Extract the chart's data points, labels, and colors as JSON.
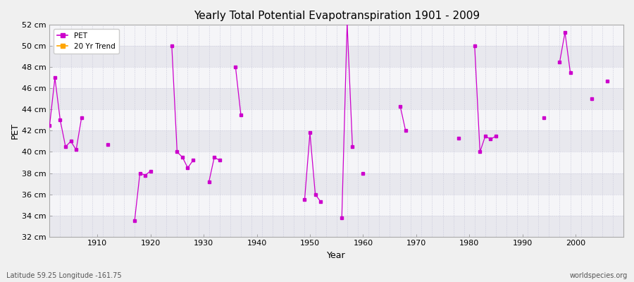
{
  "title": "Yearly Total Potential Evapotranspiration 1901 - 2009",
  "xlabel": "Year",
  "ylabel": "PET",
  "bottom_left_label": "Latitude 59.25 Longitude -161.75",
  "bottom_right_label": "worldspecies.org",
  "xlim": [
    1901,
    2009
  ],
  "ylim": [
    32,
    52
  ],
  "ytick_labels": [
    "32 cm",
    "34 cm",
    "36 cm",
    "38 cm",
    "40 cm",
    "42 cm",
    "44 cm",
    "46 cm",
    "48 cm",
    "50 cm",
    "52 cm"
  ],
  "ytick_values": [
    32,
    34,
    36,
    38,
    40,
    42,
    44,
    46,
    48,
    50,
    52
  ],
  "background_color": "#f0f0f0",
  "plot_bg_color": "#f0f0f0",
  "band_color_a": "#e8e8ee",
  "band_color_b": "#f5f5f8",
  "grid_color": "#ccccdd",
  "pet_color": "#cc00cc",
  "trend_color": "#ffa500",
  "pet_linewidth": 0.9,
  "pet_markersize": 2.5,
  "pet_data": [
    [
      1901,
      42.5
    ],
    [
      1902,
      47.0
    ],
    [
      1903,
      43.0
    ],
    [
      1904,
      40.5
    ],
    [
      1905,
      41.0
    ],
    [
      1906,
      40.2
    ],
    [
      1907,
      43.2
    ],
    [
      1912,
      40.7
    ],
    [
      1917,
      33.5
    ],
    [
      1918,
      38.0
    ],
    [
      1919,
      37.8
    ],
    [
      1920,
      38.2
    ],
    [
      1924,
      50.0
    ],
    [
      1925,
      40.0
    ],
    [
      1926,
      39.5
    ],
    [
      1927,
      38.5
    ],
    [
      1928,
      39.2
    ],
    [
      1931,
      37.2
    ],
    [
      1932,
      39.5
    ],
    [
      1933,
      39.2
    ],
    [
      1936,
      48.0
    ],
    [
      1937,
      43.5
    ],
    [
      1949,
      35.5
    ],
    [
      1950,
      41.8
    ],
    [
      1951,
      36.0
    ],
    [
      1952,
      35.3
    ],
    [
      1956,
      33.8
    ],
    [
      1957,
      52.2
    ],
    [
      1958,
      40.5
    ],
    [
      1960,
      38.0
    ],
    [
      1967,
      44.3
    ],
    [
      1968,
      42.0
    ],
    [
      1978,
      41.3
    ],
    [
      1981,
      50.0
    ],
    [
      1982,
      40.0
    ],
    [
      1983,
      41.5
    ],
    [
      1984,
      41.2
    ],
    [
      1985,
      41.5
    ],
    [
      1994,
      43.2
    ],
    [
      1997,
      48.5
    ],
    [
      1998,
      51.3
    ],
    [
      1999,
      47.5
    ],
    [
      2003,
      45.0
    ],
    [
      2006,
      46.7
    ]
  ],
  "pet_segments": [
    [
      1901,
      1902,
      1903,
      1904,
      1905,
      1906,
      1907
    ],
    [
      1912
    ],
    [
      1917,
      1918,
      1919,
      1920
    ],
    [
      1924,
      1925,
      1926,
      1927,
      1928
    ],
    [
      1931,
      1932,
      1933
    ],
    [
      1936,
      1937
    ],
    [
      1949,
      1950,
      1951,
      1952
    ],
    [
      1956,
      1957,
      1958
    ],
    [
      1960
    ],
    [
      1967,
      1968
    ],
    [
      1978
    ],
    [
      1981,
      1982,
      1983,
      1984,
      1985
    ],
    [
      1994
    ],
    [
      1997,
      1998,
      1999
    ],
    [
      2003
    ],
    [
      2006
    ]
  ],
  "xticks": [
    1910,
    1920,
    1930,
    1940,
    1950,
    1960,
    1970,
    1980,
    1990,
    2000
  ]
}
